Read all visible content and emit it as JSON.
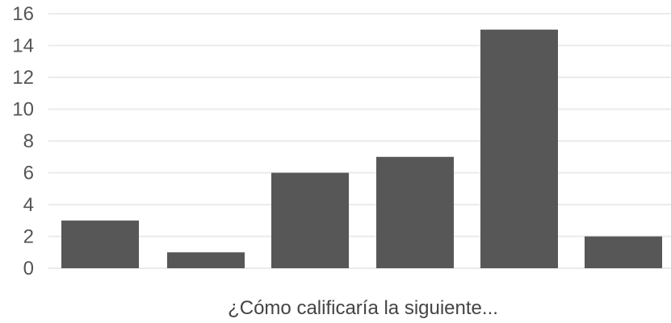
{
  "chart_data": {
    "type": "bar",
    "categories": [
      "",
      "",
      "",
      "",
      "",
      ""
    ],
    "values": [
      3,
      1,
      6,
      7,
      15,
      2
    ],
    "xlabel": "¿Cómo calificaría la siguiente...",
    "ylabel": "",
    "ylim": [
      0,
      16
    ],
    "yticks": [
      0,
      2,
      4,
      6,
      8,
      10,
      12,
      14,
      16
    ],
    "grid": true,
    "legend": "none",
    "colors": {
      "bar": "#575757",
      "grid": "#ebebeb",
      "tick_text": "#555555",
      "xlabel_text": "#444444"
    }
  }
}
